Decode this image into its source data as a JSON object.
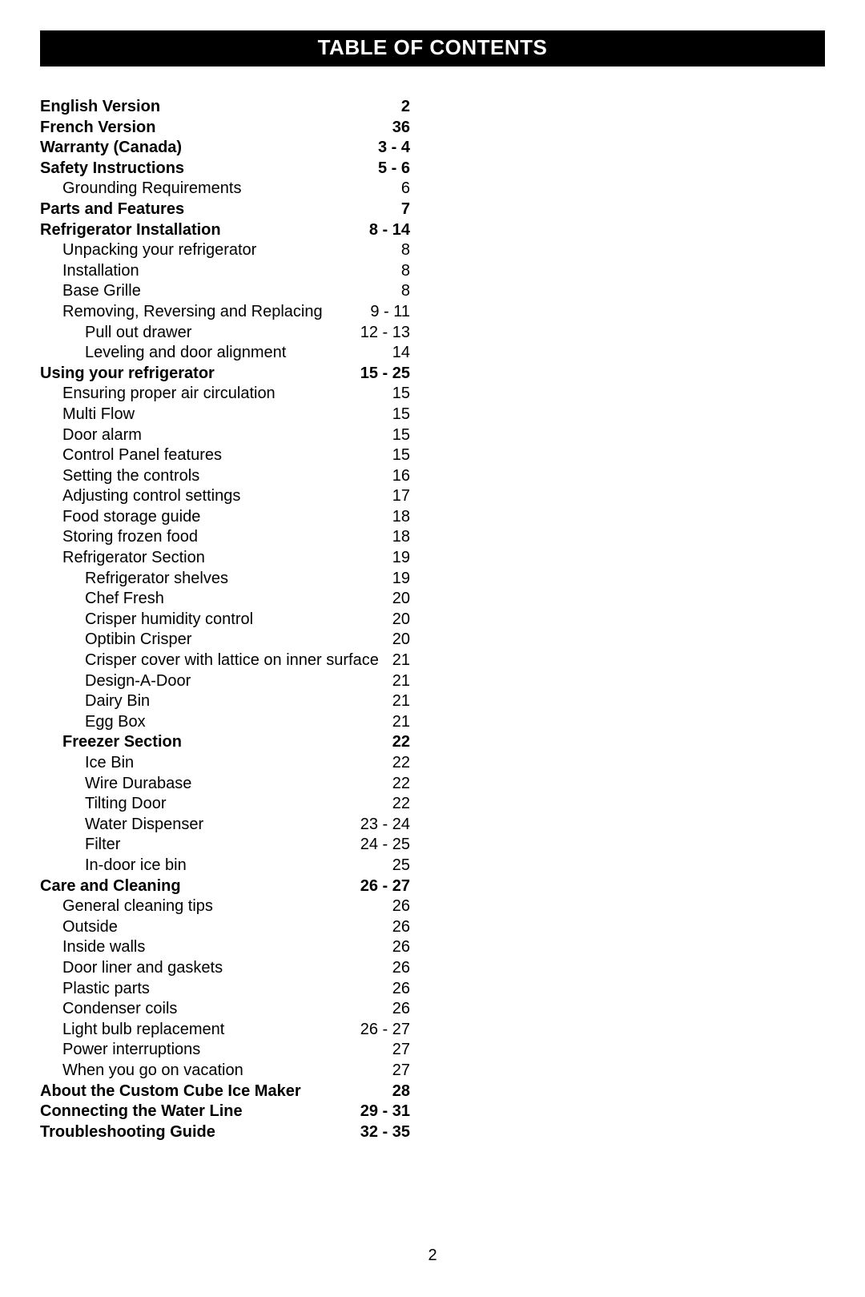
{
  "title": "TABLE OF CONTENTS",
  "footer_page": "2",
  "colors": {
    "bar_bg": "#000000",
    "bar_text": "#ffffff",
    "page_bg": "#ffffff",
    "text": "#000000"
  },
  "typography": {
    "title_fontsize": 26,
    "body_fontsize": 20,
    "font_family": "Arial"
  },
  "toc": [
    {
      "label": "English Version",
      "page": "2",
      "bold": true,
      "indent": 0
    },
    {
      "label": "French Version",
      "page": "36",
      "bold": true,
      "indent": 0
    },
    {
      "label": "Warranty (Canada)",
      "page": "3 - 4",
      "bold": true,
      "indent": 0
    },
    {
      "label": "Safety Instructions",
      "page": "5 - 6",
      "bold": true,
      "indent": 0
    },
    {
      "label": "Grounding Requirements",
      "page": "6",
      "bold": false,
      "indent": 1
    },
    {
      "label": "Parts and Features",
      "page": "7",
      "bold": true,
      "indent": 0
    },
    {
      "label": "Refrigerator Installation",
      "page": "8 - 14",
      "bold": true,
      "indent": 0
    },
    {
      "label": "Unpacking your refrigerator",
      "page": "8",
      "bold": false,
      "indent": 1
    },
    {
      "label": "Installation",
      "page": "8",
      "bold": false,
      "indent": 1
    },
    {
      "label": "Base Grille",
      "page": "8",
      "bold": false,
      "indent": 1
    },
    {
      "label": "Removing, Reversing and Replacing",
      "page": "9 - 11",
      "bold": false,
      "indent": 1
    },
    {
      "label": "Pull out drawer",
      "page": "12 - 13",
      "bold": false,
      "indent": 2
    },
    {
      "label": "Leveling and door alignment",
      "page": "14",
      "bold": false,
      "indent": 2
    },
    {
      "label": "Using your refrigerator",
      "page": "15 - 25",
      "bold": true,
      "indent": 0
    },
    {
      "label": "Ensuring proper air circulation",
      "page": "15",
      "bold": false,
      "indent": 1
    },
    {
      "label": "Multi Flow",
      "page": "15",
      "bold": false,
      "indent": 1
    },
    {
      "label": "Door alarm",
      "page": "15",
      "bold": false,
      "indent": 1
    },
    {
      "label": "Control Panel features",
      "page": "15",
      "bold": false,
      "indent": 1
    },
    {
      "label": "Setting the controls",
      "page": "16",
      "bold": false,
      "indent": 1
    },
    {
      "label": "Adjusting control settings",
      "page": "17",
      "bold": false,
      "indent": 1
    },
    {
      "label": "Food storage guide",
      "page": "18",
      "bold": false,
      "indent": 1
    },
    {
      "label": "Storing frozen food",
      "page": "18",
      "bold": false,
      "indent": 1
    },
    {
      "label": "Refrigerator Section",
      "page": "19",
      "bold": false,
      "indent": 1
    },
    {
      "label": "Refrigerator shelves",
      "page": "19",
      "bold": false,
      "indent": 2
    },
    {
      "label": "Chef Fresh",
      "page": "20",
      "bold": false,
      "indent": 2
    },
    {
      "label": "Crisper humidity control",
      "page": "20",
      "bold": false,
      "indent": 2
    },
    {
      "label": "Optibin Crisper",
      "page": "20",
      "bold": false,
      "indent": 2
    },
    {
      "label": "Crisper cover with lattice on inner surface",
      "page": "21",
      "bold": false,
      "indent": 2
    },
    {
      "label": "Design-A-Door",
      "page": "21",
      "bold": false,
      "indent": 2
    },
    {
      "label": "Dairy Bin",
      "page": "21",
      "bold": false,
      "indent": 2
    },
    {
      "label": "Egg Box",
      "page": "21",
      "bold": false,
      "indent": 2
    },
    {
      "label": "Freezer Section",
      "page": "22",
      "bold": true,
      "indent": 1
    },
    {
      "label": "Ice Bin",
      "page": "22",
      "bold": false,
      "indent": 2
    },
    {
      "label": "Wire Durabase",
      "page": "22",
      "bold": false,
      "indent": 2
    },
    {
      "label": "Tilting Door",
      "page": "22",
      "bold": false,
      "indent": 2
    },
    {
      "label": "Water Dispenser",
      "page": "23 - 24",
      "bold": false,
      "indent": 2
    },
    {
      "label": "Filter",
      "page": "24 - 25",
      "bold": false,
      "indent": 2
    },
    {
      "label": "In-door ice bin",
      "page": "25",
      "bold": false,
      "indent": 2
    },
    {
      "label": "Care and Cleaning",
      "page": "26 - 27",
      "bold": true,
      "indent": 0
    },
    {
      "label": "General cleaning tips",
      "page": "26",
      "bold": false,
      "indent": 1
    },
    {
      "label": "Outside",
      "page": "26",
      "bold": false,
      "indent": 1
    },
    {
      "label": "Inside walls",
      "page": "26",
      "bold": false,
      "indent": 1
    },
    {
      "label": "Door liner and gaskets",
      "page": "26",
      "bold": false,
      "indent": 1
    },
    {
      "label": "Plastic parts",
      "page": "26",
      "bold": false,
      "indent": 1
    },
    {
      "label": "Condenser coils",
      "page": "26",
      "bold": false,
      "indent": 1
    },
    {
      "label": "Light bulb replacement",
      "page": "26 - 27",
      "bold": false,
      "indent": 1
    },
    {
      "label": "Power interruptions",
      "page": "27",
      "bold": false,
      "indent": 1
    },
    {
      "label": "When you go on vacation",
      "page": "27",
      "bold": false,
      "indent": 1
    },
    {
      "label": "About the Custom Cube Ice Maker",
      "page": "28",
      "bold": true,
      "indent": 0
    },
    {
      "label": "Connecting the Water Line",
      "page": "29 - 31",
      "bold": true,
      "indent": 0
    },
    {
      "label": "Troubleshooting Guide",
      "page": "32 - 35",
      "bold": true,
      "indent": 0
    }
  ]
}
